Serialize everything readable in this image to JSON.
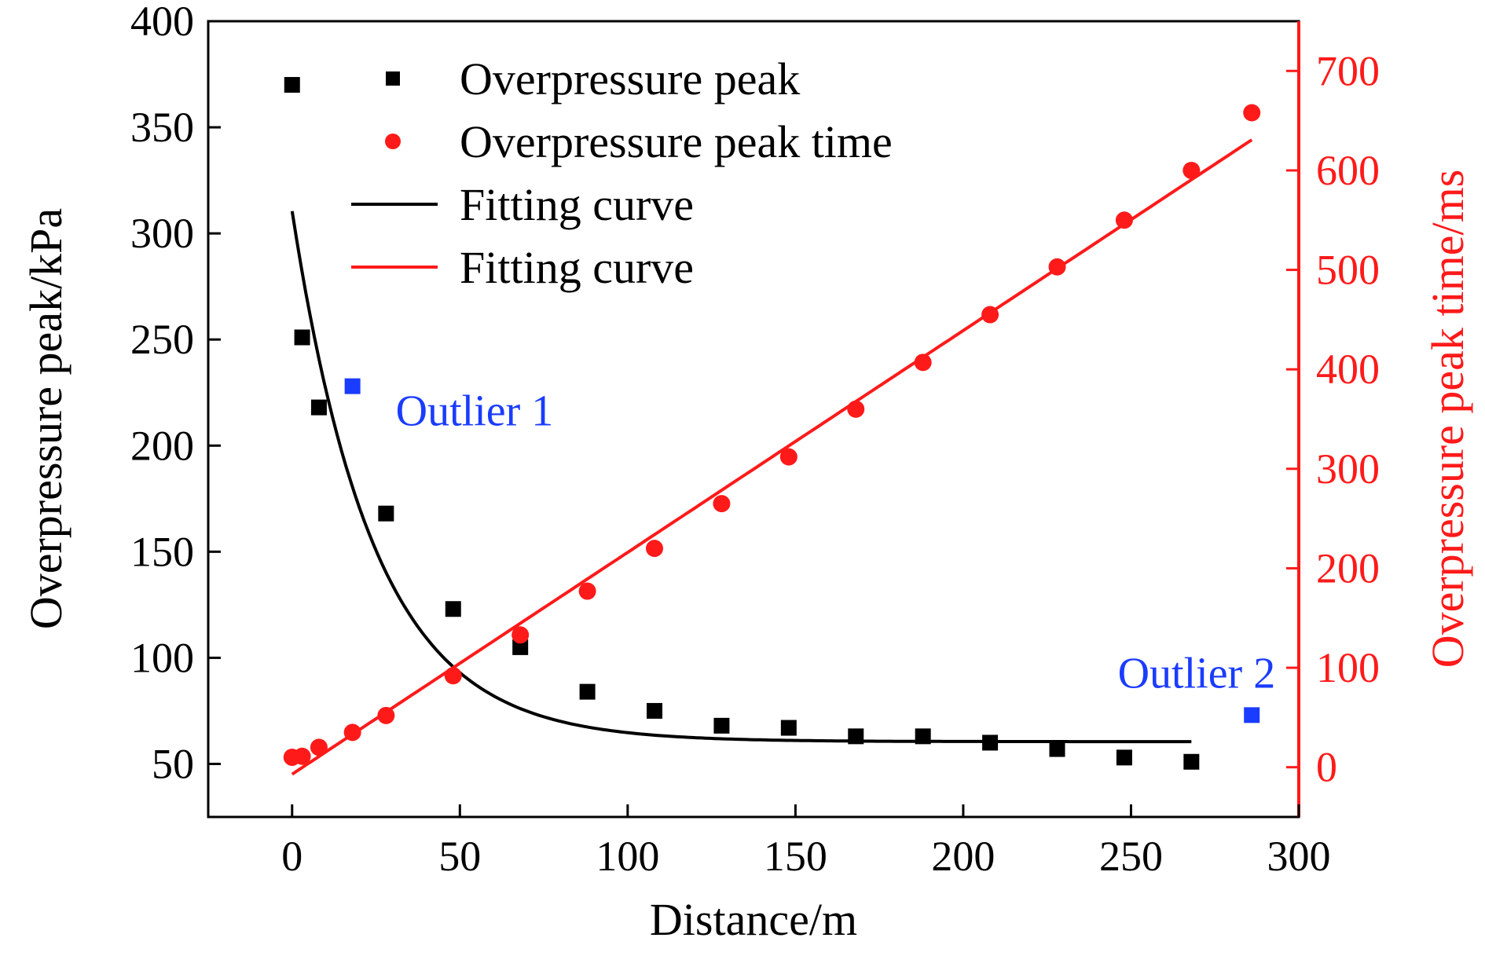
{
  "chart_data": {
    "type": "scatter",
    "xlabel": "Distance/m",
    "ylabel_left": "Overpressure peak/kPa",
    "ylabel_right": "Overpressure peak time/ms",
    "xlim": [
      -25,
      300
    ],
    "ylim_left": [
      25,
      400
    ],
    "ylim_right": [
      -50,
      750
    ],
    "xticks": [
      0,
      50,
      100,
      150,
      200,
      250,
      300
    ],
    "yticks_left": [
      50,
      100,
      150,
      200,
      250,
      300,
      350,
      400
    ],
    "yticks_right": [
      0,
      100,
      200,
      300,
      400,
      500,
      600,
      700
    ],
    "colors": {
      "black": "#000000",
      "red": "#ff1a1a",
      "blue": "#1a3cff"
    },
    "legend": {
      "placement": "top-left",
      "entries": [
        {
          "label": "Overpressure peak",
          "marker": "square",
          "color": "#000000"
        },
        {
          "label": "Overpressure peak time",
          "marker": "circle",
          "color": "#ff1a1a"
        },
        {
          "label": "Fitting curve",
          "marker": "line",
          "color": "#000000"
        },
        {
          "label": "Fitting curve",
          "marker": "line",
          "color": "#ff1a1a"
        }
      ]
    },
    "series": [
      {
        "name": "Overpressure peak",
        "axis": "left",
        "marker": "square",
        "color": "#000000",
        "x": [
          0,
          3,
          8,
          28,
          48,
          68,
          88,
          108,
          128,
          148,
          168,
          188,
          208,
          228,
          248,
          268
        ],
        "y": [
          370,
          251,
          218,
          168,
          123,
          105,
          84,
          75,
          68,
          67,
          63,
          63,
          60,
          57,
          53,
          51
        ]
      },
      {
        "name": "Overpressure peak time",
        "axis": "right",
        "marker": "circle",
        "color": "#ff1a1a",
        "x": [
          0,
          3,
          8,
          18,
          28,
          48,
          68,
          88,
          108,
          128,
          148,
          168,
          188,
          208,
          228,
          248,
          268,
          286
        ],
        "y": [
          10,
          11,
          20,
          35,
          52,
          92,
          133,
          177,
          220,
          265,
          312,
          360,
          407,
          455,
          503,
          550,
          600,
          658
        ]
      },
      {
        "name": "Fitting curve",
        "axis": "left",
        "marker": "line",
        "color": "#000000",
        "model": {
          "form": "exponential decay",
          "y0": 60.5,
          "A": 250,
          "t": 24.5
        },
        "x_range": [
          0,
          268
        ]
      },
      {
        "name": "Fitting curve",
        "axis": "right",
        "marker": "line",
        "color": "#ff1a1a",
        "model": {
          "form": "linear",
          "intercept": -7,
          "slope": 2.23
        },
        "x_range": [
          0,
          286
        ]
      }
    ],
    "outliers": [
      {
        "label": "Outlier 1",
        "x": 18,
        "y": 228,
        "color": "#1a3cff"
      },
      {
        "label": "Outlier 2",
        "x": 286,
        "y": 73,
        "color": "#1a3cff"
      }
    ]
  }
}
